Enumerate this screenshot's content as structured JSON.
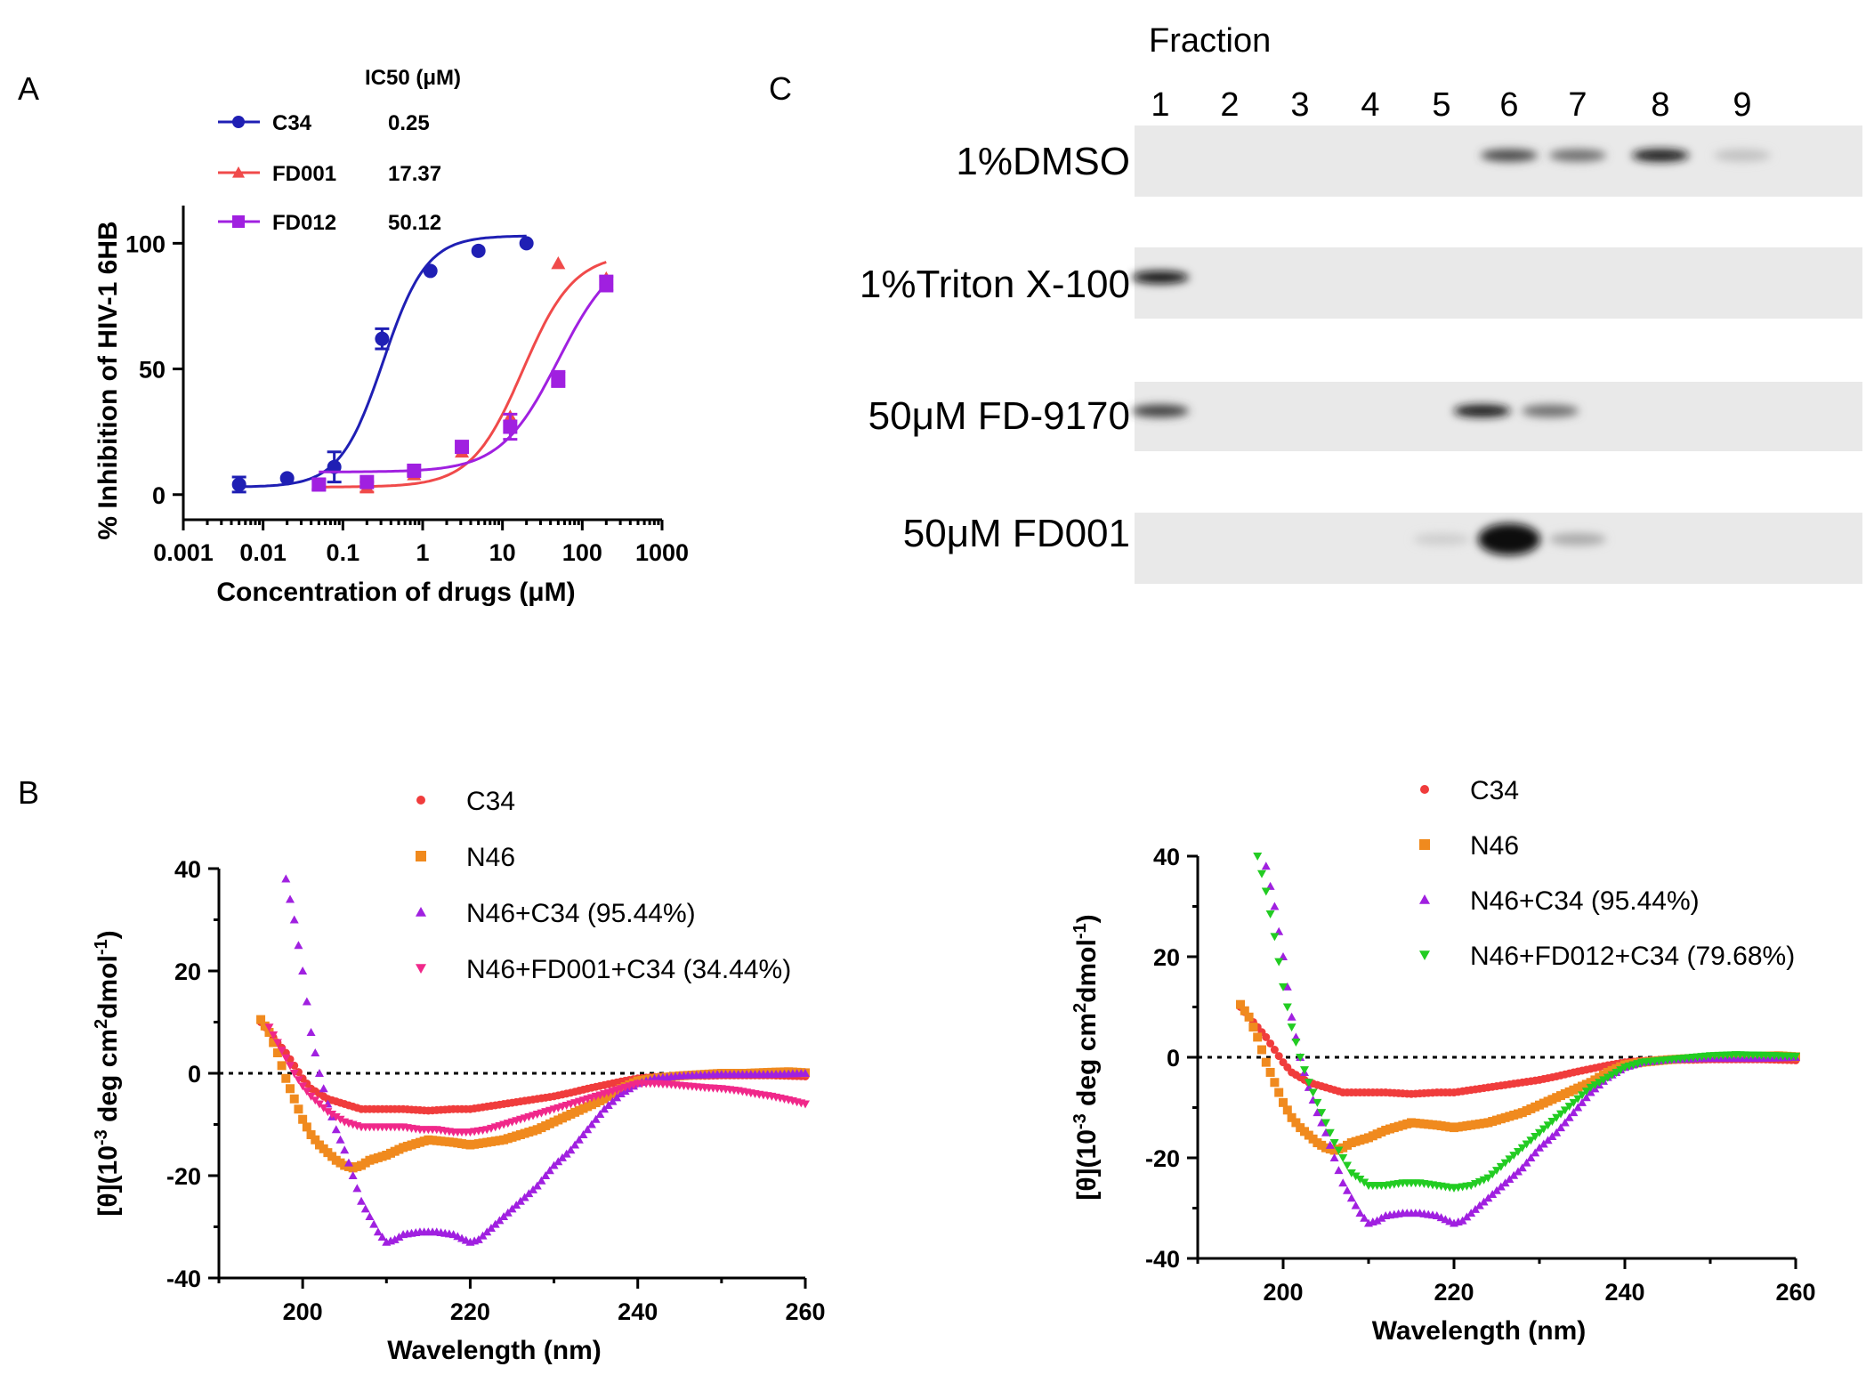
{
  "panels": {
    "A": "A",
    "B": "B",
    "C": "C"
  },
  "chart_data": [
    {
      "id": "A",
      "type": "scatter",
      "title": "",
      "xlabel": "Concentration of drugs (μM)",
      "ylabel": "% Inhibition of HIV-1 6HB",
      "xscale": "log",
      "xlim": [
        0.001,
        1000
      ],
      "ylim": [
        -10,
        115
      ],
      "xticks": [
        0.001,
        0.01,
        0.1,
        1,
        10,
        100,
        1000
      ],
      "xtick_labels": [
        "0.001",
        "0.01",
        "0.1",
        "1",
        "10",
        "100",
        "1000"
      ],
      "yticks": [
        0,
        50,
        100
      ],
      "ytick_labels": [
        "0",
        "50",
        "100"
      ],
      "legend_header": "IC50 (μM)",
      "series": [
        {
          "name": "C34",
          "ic50": "0.25",
          "color": "#1f1fb4",
          "marker": "circle",
          "x": [
            0.005,
            0.02,
            0.078,
            0.31,
            1.25,
            5,
            20
          ],
          "y": [
            4,
            6.5,
            11,
            62,
            89,
            97,
            100
          ],
          "err": [
            3,
            0,
            6,
            4,
            0,
            0,
            0
          ],
          "fit": {
            "bottom": 3,
            "top": 103,
            "ec50": 0.32,
            "hill": 1.6
          }
        },
        {
          "name": "FD001",
          "ic50": "17.37",
          "color": "#f04a4a",
          "marker": "triangle",
          "x": [
            0.05,
            0.2,
            0.78,
            3.1,
            12.5,
            50,
            200
          ],
          "y": [
            4,
            3,
            8,
            17,
            31,
            92,
            86
          ],
          "err": [
            0,
            2,
            0,
            0,
            0,
            0,
            0
          ],
          "fit": {
            "bottom": 3,
            "top": 96,
            "ec50": 18,
            "hill": 1.35
          }
        },
        {
          "name": "FD012",
          "ic50": "50.12",
          "color": "#a020e0",
          "marker": "square",
          "x": [
            0.05,
            0.2,
            0.78,
            3.1,
            12.5,
            50,
            200
          ],
          "y": [
            4,
            5,
            9.5,
            19,
            27,
            46,
            84
          ],
          "err": [
            2,
            0,
            0,
            0,
            5,
            3,
            3
          ],
          "fit": {
            "bottom": 9,
            "top": 98,
            "ec50": 50,
            "hill": 1.2
          }
        }
      ]
    },
    {
      "id": "B-left",
      "type": "scatter",
      "title": "",
      "xlabel": "Wavelength (nm)",
      "ylabel": "[θ](10-3 deg cm2dmol-1)",
      "xlim": [
        190,
        260
      ],
      "ylim": [
        -40,
        40
      ],
      "xticks": [
        200,
        220,
        240,
        260
      ],
      "yticks": [
        -40,
        -20,
        0,
        20,
        40
      ],
      "zero_line": true,
      "series": [
        {
          "name": "C34",
          "label": "C34",
          "color": "#f03c3c",
          "marker": "circle",
          "x": [
            195,
            196,
            197,
            198,
            199,
            200,
            201,
            202,
            203,
            204,
            205,
            206,
            207,
            208,
            210,
            212,
            215,
            218,
            220,
            222,
            224,
            226,
            228,
            230,
            232,
            234,
            236,
            238,
            240,
            242,
            245,
            248,
            250,
            253,
            256,
            258,
            260
          ],
          "y": [
            10,
            8,
            6,
            4,
            1.5,
            -1,
            -3,
            -4,
            -5,
            -5.5,
            -6,
            -6.5,
            -7,
            -7,
            -7,
            -7,
            -7.3,
            -7,
            -7,
            -6.5,
            -6,
            -5.5,
            -5,
            -4.5,
            -3.8,
            -3,
            -2.3,
            -1.6,
            -1,
            -0.7,
            -0.5,
            -0.5,
            -0.4,
            -0.4,
            -0.4,
            -0.5,
            -0.6
          ]
        },
        {
          "name": "N46",
          "label": "N46",
          "color": "#f08a1e",
          "marker": "square",
          "x": [
            195,
            196,
            197,
            198,
            199,
            200,
            201,
            202,
            203,
            204,
            205,
            206,
            207,
            208,
            210,
            212,
            215,
            218,
            220,
            222,
            224,
            226,
            228,
            230,
            232,
            234,
            236,
            238,
            240,
            242,
            245,
            248,
            250,
            253,
            256,
            258,
            260
          ],
          "y": [
            10.5,
            8,
            4,
            -1,
            -5,
            -9,
            -12,
            -14,
            -15.5,
            -17,
            -18,
            -18.5,
            -18,
            -17,
            -16,
            -14.5,
            -13,
            -13.5,
            -14,
            -13.5,
            -13,
            -12,
            -11,
            -9.5,
            -8,
            -6.5,
            -5,
            -3,
            -1.5,
            -1,
            -0.5,
            -0.2,
            0,
            0,
            0.2,
            0.3,
            0.1
          ]
        },
        {
          "name": "N46+C34",
          "label": "N46+C34  (95.44%)",
          "color": "#a020e0",
          "marker": "triangle",
          "x": [
            198,
            199,
            200,
            201,
            202,
            203,
            204,
            205,
            206,
            207,
            208,
            209,
            210,
            211,
            212,
            214,
            216,
            218,
            220,
            221,
            222,
            224,
            226,
            228,
            230,
            232,
            234,
            236,
            238,
            240,
            242,
            245,
            248,
            250,
            253,
            256,
            258,
            260
          ],
          "y": [
            38,
            30,
            20,
            8,
            0,
            -6,
            -11,
            -15,
            -20,
            -25,
            -28,
            -31,
            -33,
            -32.5,
            -31.5,
            -31,
            -31,
            -31.5,
            -33,
            -32.5,
            -31,
            -28,
            -25,
            -22,
            -18,
            -15,
            -11,
            -7,
            -4,
            -2,
            -1,
            -0.5,
            -0.3,
            -0.2,
            -0.2,
            -0.2,
            -0.1,
            0
          ]
        },
        {
          "name": "N46+FD001+C34",
          "label": "N46+FD001+C34  (34.44%)",
          "color": "#f0288a",
          "marker": "triangle-down",
          "x": [
            196,
            197,
            198,
            199,
            200,
            201,
            202,
            203,
            204,
            205,
            206,
            207,
            208,
            210,
            212,
            214,
            216,
            218,
            220,
            222,
            224,
            226,
            228,
            230,
            232,
            234,
            236,
            238,
            240,
            242,
            244,
            246,
            248,
            250,
            252,
            254,
            256,
            258,
            260
          ],
          "y": [
            9,
            6,
            3,
            0,
            -2.5,
            -4.5,
            -6,
            -7.5,
            -8.5,
            -9.5,
            -10,
            -10.5,
            -10.5,
            -10.5,
            -10.5,
            -11,
            -11,
            -11.5,
            -11.5,
            -11,
            -10,
            -9,
            -8,
            -7,
            -6,
            -5,
            -4,
            -3,
            -2,
            -2,
            -2.2,
            -2.5,
            -2.8,
            -3,
            -3.4,
            -4,
            -4.5,
            -5.2,
            -6
          ]
        }
      ]
    },
    {
      "id": "B-right",
      "type": "scatter",
      "title": "",
      "xlabel": "Wavelength (nm)",
      "ylabel": "[θ](10-3 deg cm2dmol-1)",
      "xlim": [
        190,
        260
      ],
      "ylim": [
        -40,
        40
      ],
      "xticks": [
        200,
        220,
        240,
        260
      ],
      "yticks": [
        -40,
        -20,
        0,
        20,
        40
      ],
      "zero_line": true,
      "series": [
        {
          "name": "C34",
          "label": "C34",
          "color": "#f03c3c",
          "marker": "circle",
          "x": [
            195,
            196,
            197,
            198,
            199,
            200,
            201,
            202,
            203,
            204,
            205,
            206,
            207,
            208,
            210,
            212,
            215,
            218,
            220,
            222,
            224,
            226,
            228,
            230,
            232,
            234,
            236,
            238,
            240,
            242,
            245,
            248,
            250,
            253,
            256,
            258,
            260
          ],
          "y": [
            10,
            8,
            6,
            4,
            1.5,
            -1,
            -3,
            -4,
            -5,
            -5.5,
            -6,
            -6.5,
            -7,
            -7,
            -7,
            -7,
            -7.3,
            -7,
            -7,
            -6.5,
            -6,
            -5.5,
            -5,
            -4.5,
            -3.8,
            -3,
            -2.3,
            -1.6,
            -1,
            -0.7,
            -0.5,
            -0.5,
            -0.4,
            -0.4,
            -0.4,
            -0.5,
            -0.6
          ]
        },
        {
          "name": "N46",
          "label": "N46",
          "color": "#f08a1e",
          "marker": "square",
          "x": [
            195,
            196,
            197,
            198,
            199,
            200,
            201,
            202,
            203,
            204,
            205,
            206,
            207,
            208,
            210,
            212,
            215,
            218,
            220,
            222,
            224,
            226,
            228,
            230,
            232,
            234,
            236,
            238,
            240,
            242,
            245,
            248,
            250,
            253,
            256,
            258,
            260
          ],
          "y": [
            10.5,
            8,
            4,
            -1,
            -5,
            -9,
            -12,
            -14,
            -15.5,
            -17,
            -18,
            -18.5,
            -18,
            -17,
            -16,
            -14.5,
            -13,
            -13.5,
            -14,
            -13.5,
            -13,
            -12,
            -11,
            -9.5,
            -8,
            -6.5,
            -5,
            -3,
            -1.5,
            -1,
            -0.5,
            -0.2,
            0,
            0,
            0.2,
            0.3,
            0.1
          ]
        },
        {
          "name": "N46+C34",
          "label": "N46+C34  (95.44%)",
          "color": "#a020e0",
          "marker": "triangle",
          "x": [
            198,
            199,
            200,
            201,
            202,
            203,
            204,
            205,
            206,
            207,
            208,
            209,
            210,
            211,
            212,
            214,
            216,
            218,
            220,
            221,
            222,
            224,
            226,
            228,
            230,
            232,
            234,
            236,
            238,
            240,
            242,
            245,
            248,
            250,
            253,
            256,
            258,
            260
          ],
          "y": [
            38,
            30,
            20,
            8,
            0,
            -6,
            -11,
            -15,
            -20,
            -25,
            -28,
            -31,
            -33,
            -32.5,
            -31.5,
            -31,
            -31,
            -31.5,
            -33,
            -32.5,
            -31,
            -28,
            -25,
            -22,
            -18,
            -15,
            -11,
            -7,
            -4,
            -2,
            -1,
            -0.5,
            -0.3,
            -0.2,
            -0.2,
            -0.2,
            -0.1,
            0
          ]
        },
        {
          "name": "N46+FD012+C34",
          "label": "N46+FD012+C34  (79.68%)",
          "color": "#22cc22",
          "marker": "triangle-down",
          "x": [
            197,
            198,
            199,
            200,
            201,
            202,
            203,
            204,
            205,
            206,
            207,
            208,
            210,
            212,
            214,
            216,
            218,
            220,
            222,
            224,
            226,
            228,
            230,
            232,
            234,
            236,
            238,
            240,
            242,
            245,
            248,
            250,
            253,
            256,
            258,
            260
          ],
          "y": [
            40,
            33,
            24,
            14,
            6,
            0,
            -5,
            -9,
            -13,
            -17,
            -20,
            -23,
            -25.5,
            -25.5,
            -25,
            -25,
            -25.5,
            -26,
            -25.5,
            -24,
            -21,
            -18,
            -15,
            -12,
            -9,
            -6,
            -4,
            -2,
            -1,
            -0.5,
            0,
            0.3,
            0.5,
            0.4,
            0.3,
            0.2
          ]
        }
      ]
    }
  ],
  "blot": {
    "header": "Fraction",
    "fractions": [
      "1",
      "2",
      "3",
      "4",
      "5",
      "6",
      "7",
      "8",
      "9"
    ],
    "rows": [
      {
        "label": "1%DMSO",
        "bands": [
          {
            "fraction": 6,
            "intensity": 0.75
          },
          {
            "fraction": 7,
            "intensity": 0.6
          },
          {
            "fraction": 8,
            "intensity": 0.95
          },
          {
            "fraction": 9,
            "intensity": 0.25
          }
        ]
      },
      {
        "label": "1%Triton X-100",
        "bands": [
          {
            "fraction": 1,
            "intensity": 1.0
          }
        ]
      },
      {
        "label": "50μM FD-9170",
        "bands": [
          {
            "fraction": 1,
            "intensity": 0.8
          },
          {
            "fraction": 5.6,
            "intensity": 0.95
          },
          {
            "fraction": 6.6,
            "intensity": 0.6
          }
        ]
      },
      {
        "label": "50μM FD001",
        "bands": [
          {
            "fraction": 5,
            "intensity": 0.2
          },
          {
            "fraction": 6,
            "intensity": 1.0
          },
          {
            "fraction": 7,
            "intensity": 0.35
          }
        ]
      }
    ]
  }
}
